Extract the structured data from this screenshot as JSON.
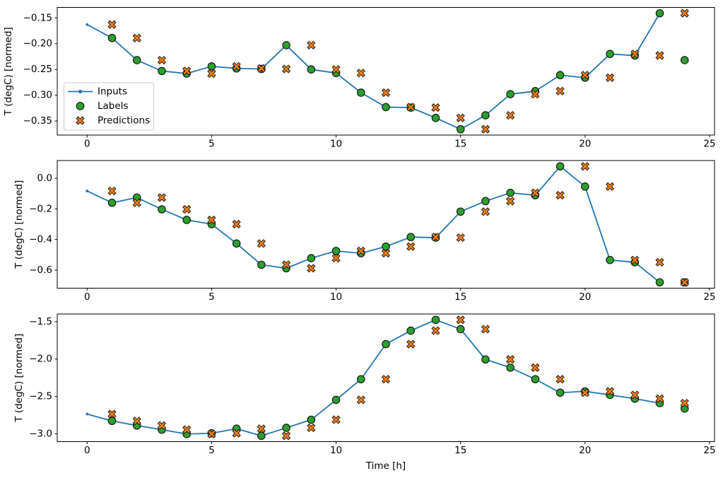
{
  "figure": {
    "xlabel": "Time [h]",
    "background": "#ffffff",
    "axis_color": "#000000",
    "legend_items": [
      "Inputs",
      "Labels",
      "Predictions"
    ]
  },
  "chart_data": [
    {
      "type": "line",
      "ylabel": "T (degC) [normed]",
      "xlim": [
        -1.2,
        25.2
      ],
      "ylim": [
        -0.3773,
        -0.1297
      ],
      "xticks": [
        0,
        5,
        10,
        15,
        20,
        25
      ],
      "xtick_labels": [
        "0",
        "5",
        "10",
        "15",
        "20",
        "25"
      ],
      "yticks": [
        -0.15,
        -0.2,
        -0.25,
        -0.3,
        -0.35
      ],
      "ytick_labels": [
        "−0.15",
        "−0.20",
        "−0.25",
        "−0.30",
        "−0.35"
      ],
      "legend": true,
      "grid": false,
      "series": [
        {
          "name": "Inputs",
          "marker": "line-dot",
          "color": "#1f77b4",
          "x": [
            0,
            1,
            2,
            3,
            4,
            5,
            6,
            7,
            8,
            9,
            10,
            11,
            12,
            13,
            14,
            15,
            16,
            17,
            18,
            19,
            20,
            21,
            22,
            23
          ],
          "y": [
            -0.163,
            -0.189,
            -0.232,
            -0.253,
            -0.258,
            -0.244,
            -0.248,
            -0.249,
            -0.203,
            -0.25,
            -0.257,
            -0.295,
            -0.323,
            -0.324,
            -0.344,
            -0.366,
            -0.339,
            -0.298,
            -0.292,
            -0.261,
            -0.266,
            -0.22,
            -0.223,
            -0.141
          ]
        },
        {
          "name": "Labels",
          "marker": "circle",
          "color": "#2ca02c",
          "edge_color": "#1a1a1a",
          "x": [
            1,
            2,
            3,
            4,
            5,
            6,
            7,
            8,
            9,
            10,
            11,
            12,
            13,
            14,
            15,
            16,
            17,
            18,
            19,
            20,
            21,
            22,
            23,
            24
          ],
          "y": [
            -0.189,
            -0.232,
            -0.253,
            -0.258,
            -0.244,
            -0.248,
            -0.249,
            -0.203,
            -0.25,
            -0.257,
            -0.295,
            -0.323,
            -0.324,
            -0.344,
            -0.366,
            -0.339,
            -0.298,
            -0.292,
            -0.261,
            -0.266,
            -0.22,
            -0.223,
            -0.141,
            -0.232
          ]
        },
        {
          "name": "Predictions",
          "marker": "thick-x",
          "color": "#ff7f0e",
          "edge_color": "#1a1a1a",
          "x": [
            1,
            2,
            3,
            4,
            5,
            6,
            7,
            8,
            9,
            10,
            11,
            12,
            13,
            14,
            15,
            16,
            17,
            18,
            19,
            20,
            21,
            22,
            23,
            24
          ],
          "y": [
            -0.163,
            -0.189,
            -0.232,
            -0.253,
            -0.258,
            -0.244,
            -0.248,
            -0.249,
            -0.203,
            -0.25,
            -0.257,
            -0.295,
            -0.323,
            -0.324,
            -0.344,
            -0.366,
            -0.339,
            -0.298,
            -0.292,
            -0.261,
            -0.266,
            -0.22,
            -0.223,
            -0.141
          ]
        }
      ]
    },
    {
      "type": "line",
      "ylabel": "T (degC) [normed]",
      "xlim": [
        -1.2,
        25.2
      ],
      "ylim": [
        -0.718,
        0.116
      ],
      "xticks": [
        0,
        5,
        10,
        15,
        20,
        25
      ],
      "xtick_labels": [
        "0",
        "5",
        "10",
        "15",
        "20",
        "25"
      ],
      "yticks": [
        0.0,
        -0.2,
        -0.4,
        -0.6
      ],
      "ytick_labels": [
        "0.0",
        "−0.2",
        "−0.4",
        "−0.6"
      ],
      "legend": false,
      "grid": false,
      "series": [
        {
          "name": "Inputs",
          "marker": "line-dot",
          "color": "#1f77b4",
          "x": [
            0,
            1,
            2,
            3,
            4,
            5,
            6,
            7,
            8,
            9,
            10,
            11,
            12,
            13,
            14,
            15,
            16,
            17,
            18,
            19,
            20,
            21,
            22,
            23
          ],
          "y": [
            -0.083,
            -0.16,
            -0.126,
            -0.203,
            -0.272,
            -0.3,
            -0.426,
            -0.565,
            -0.588,
            -0.522,
            -0.475,
            -0.49,
            -0.446,
            -0.384,
            -0.388,
            -0.218,
            -0.149,
            -0.095,
            -0.111,
            0.078,
            -0.054,
            -0.534,
            -0.549,
            -0.68
          ]
        },
        {
          "name": "Labels",
          "marker": "circle",
          "color": "#2ca02c",
          "edge_color": "#1a1a1a",
          "x": [
            1,
            2,
            3,
            4,
            5,
            6,
            7,
            8,
            9,
            10,
            11,
            12,
            13,
            14,
            15,
            16,
            17,
            18,
            19,
            20,
            21,
            22,
            23,
            24
          ],
          "y": [
            -0.16,
            -0.126,
            -0.203,
            -0.272,
            -0.3,
            -0.426,
            -0.565,
            -0.588,
            -0.522,
            -0.475,
            -0.49,
            -0.446,
            -0.384,
            -0.388,
            -0.218,
            -0.149,
            -0.095,
            -0.111,
            0.078,
            -0.054,
            -0.534,
            -0.549,
            -0.68,
            -0.68
          ]
        },
        {
          "name": "Predictions",
          "marker": "thick-x",
          "color": "#ff7f0e",
          "edge_color": "#1a1a1a",
          "x": [
            1,
            2,
            3,
            4,
            5,
            6,
            7,
            8,
            9,
            10,
            11,
            12,
            13,
            14,
            15,
            16,
            17,
            18,
            19,
            20,
            21,
            22,
            23,
            24
          ],
          "y": [
            -0.083,
            -0.16,
            -0.126,
            -0.203,
            -0.272,
            -0.3,
            -0.426,
            -0.565,
            -0.588,
            -0.522,
            -0.475,
            -0.49,
            -0.446,
            -0.384,
            -0.388,
            -0.218,
            -0.149,
            -0.095,
            -0.111,
            0.078,
            -0.054,
            -0.534,
            -0.549,
            -0.68
          ]
        }
      ]
    },
    {
      "type": "line",
      "ylabel": "T (degC) [normed]",
      "xlim": [
        -1.2,
        25.2
      ],
      "ylim": [
        -3.105,
        -1.397
      ],
      "xticks": [
        0,
        5,
        10,
        15,
        20,
        25
      ],
      "xtick_labels": [
        "0",
        "5",
        "10",
        "15",
        "20",
        "25"
      ],
      "yticks": [
        -1.5,
        -2.0,
        -2.5,
        -3.0
      ],
      "ytick_labels": [
        "−1.5",
        "−2.0",
        "−2.5",
        "−3.0"
      ],
      "legend": false,
      "grid": false,
      "series": [
        {
          "name": "Inputs",
          "marker": "line-dot",
          "color": "#1f77b4",
          "x": [
            0,
            1,
            2,
            3,
            4,
            5,
            6,
            7,
            8,
            9,
            10,
            11,
            12,
            13,
            14,
            15,
            16,
            17,
            18,
            19,
            20,
            21,
            22,
            23
          ],
          "y": [
            -2.736,
            -2.828,
            -2.89,
            -2.945,
            -3.003,
            -2.993,
            -2.932,
            -3.027,
            -2.92,
            -2.812,
            -2.546,
            -2.27,
            -1.8,
            -1.62,
            -1.475,
            -1.6,
            -2.005,
            -2.115,
            -2.27,
            -2.45,
            -2.432,
            -2.48,
            -2.53,
            -2.59
          ]
        },
        {
          "name": "Labels",
          "marker": "circle",
          "color": "#2ca02c",
          "edge_color": "#1a1a1a",
          "x": [
            1,
            2,
            3,
            4,
            5,
            6,
            7,
            8,
            9,
            10,
            11,
            12,
            13,
            14,
            15,
            16,
            17,
            18,
            19,
            20,
            21,
            22,
            23,
            24
          ],
          "y": [
            -2.828,
            -2.89,
            -2.945,
            -3.003,
            -2.993,
            -2.932,
            -3.027,
            -2.92,
            -2.812,
            -2.546,
            -2.27,
            -1.8,
            -1.62,
            -1.475,
            -1.6,
            -2.005,
            -2.115,
            -2.27,
            -2.45,
            -2.432,
            -2.48,
            -2.53,
            -2.59,
            -2.662
          ]
        },
        {
          "name": "Predictions",
          "marker": "thick-x",
          "color": "#ff7f0e",
          "edge_color": "#1a1a1a",
          "x": [
            1,
            2,
            3,
            4,
            5,
            6,
            7,
            8,
            9,
            10,
            11,
            12,
            13,
            14,
            15,
            16,
            17,
            18,
            19,
            20,
            21,
            22,
            23,
            24
          ],
          "y": [
            -2.736,
            -2.828,
            -2.89,
            -2.945,
            -3.003,
            -2.993,
            -2.932,
            -3.027,
            -2.92,
            -2.812,
            -2.546,
            -2.27,
            -1.8,
            -1.62,
            -1.475,
            -1.6,
            -2.005,
            -2.115,
            -2.27,
            -2.45,
            -2.432,
            -2.48,
            -2.53,
            -2.59
          ]
        }
      ]
    }
  ]
}
